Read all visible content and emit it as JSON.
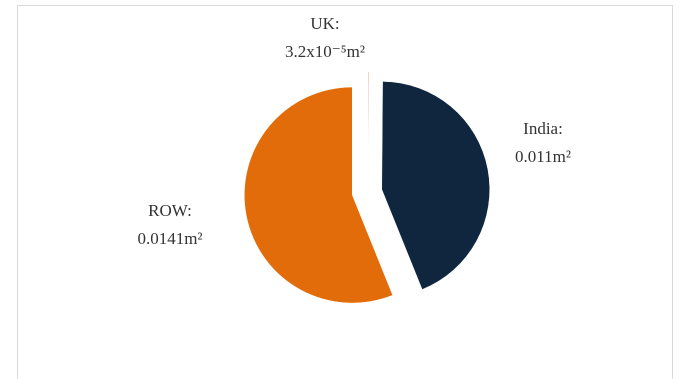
{
  "chart_data": {
    "type": "pie",
    "categories": [
      "UK:",
      "India:",
      "ROW:"
    ],
    "values": [
      3.2e-05,
      0.011,
      0.0141
    ],
    "value_labels": [
      "3.2x10⁻⁵m²",
      "0.011m²",
      "0.0141m²"
    ],
    "colors": [
      "#c0504d",
      "#10263f",
      "#e36c0a"
    ]
  }
}
